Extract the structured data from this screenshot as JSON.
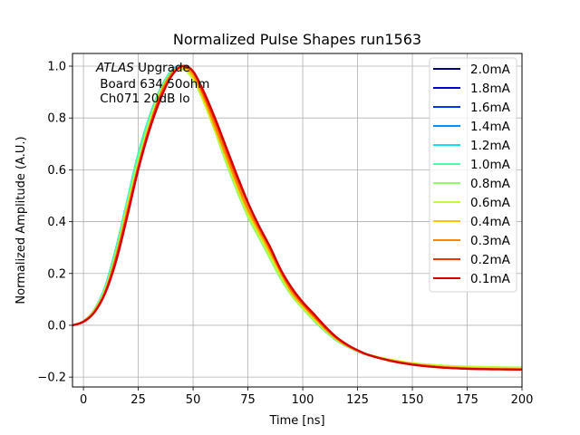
{
  "chart_data": {
    "type": "line",
    "title": "Normalized Pulse Shapes run1563",
    "xlabel": "Time [ns]",
    "ylabel": "Normalized Amplitude (A.U.)",
    "xlim": [
      -5,
      200
    ],
    "ylim": [
      -0.238,
      1.049
    ],
    "xticks": [
      0,
      25,
      50,
      75,
      100,
      125,
      150,
      175,
      200
    ],
    "xtick_labels": [
      "0",
      "25",
      "50",
      "75",
      "100",
      "125",
      "150",
      "175",
      "200"
    ],
    "yticks": [
      -0.2,
      0.0,
      0.2,
      0.4,
      0.6,
      0.8,
      1.0
    ],
    "ytick_labels": [
      "−0.2",
      "0.0",
      "0.2",
      "0.4",
      "0.6",
      "0.8",
      "1.0"
    ],
    "grid": true,
    "legend_position": "top-right",
    "annotation": {
      "italic": "ATLAS",
      "line1_rest": " Upgrade",
      "line2": " Board 634 50ohm",
      "line3": " Ch071 20dB lo"
    },
    "x": [
      -5,
      0,
      5,
      10,
      15,
      20,
      25,
      30,
      35,
      40,
      45,
      50,
      55,
      60,
      65,
      70,
      75,
      80,
      85,
      90,
      95,
      100,
      105,
      110,
      115,
      120,
      125,
      130,
      140,
      150,
      160,
      170,
      180,
      190,
      200
    ],
    "series": [
      {
        "name": "2.0mA",
        "color": "#00007f",
        "values": [
          0.0,
          0.015,
          0.06,
          0.15,
          0.3,
          0.48,
          0.66,
          0.8,
          0.91,
          0.98,
          1.0,
          0.96,
          0.87,
          0.76,
          0.64,
          0.53,
          0.43,
          0.35,
          0.27,
          0.19,
          0.12,
          0.07,
          0.02,
          -0.02,
          -0.055,
          -0.08,
          -0.1,
          -0.115,
          -0.135,
          -0.15,
          -0.158,
          -0.163,
          -0.165,
          -0.166,
          -0.167
        ]
      },
      {
        "name": "1.8mA",
        "color": "#0000d0",
        "values": [
          0.0,
          0.015,
          0.06,
          0.15,
          0.3,
          0.48,
          0.66,
          0.8,
          0.91,
          0.98,
          1.0,
          0.96,
          0.87,
          0.76,
          0.64,
          0.53,
          0.43,
          0.35,
          0.27,
          0.19,
          0.12,
          0.07,
          0.02,
          -0.02,
          -0.055,
          -0.08,
          -0.1,
          -0.115,
          -0.135,
          -0.15,
          -0.158,
          -0.163,
          -0.165,
          -0.166,
          -0.167
        ]
      },
      {
        "name": "1.6mA",
        "color": "#0030ff",
        "values": [
          0.0,
          0.015,
          0.06,
          0.15,
          0.3,
          0.48,
          0.66,
          0.8,
          0.91,
          0.98,
          1.0,
          0.96,
          0.87,
          0.76,
          0.64,
          0.53,
          0.43,
          0.35,
          0.27,
          0.19,
          0.12,
          0.07,
          0.02,
          -0.02,
          -0.055,
          -0.08,
          -0.1,
          -0.115,
          -0.135,
          -0.15,
          -0.158,
          -0.163,
          -0.165,
          -0.166,
          -0.167
        ]
      },
      {
        "name": "1.4mA",
        "color": "#0090ff",
        "values": [
          0.0,
          0.015,
          0.06,
          0.15,
          0.3,
          0.48,
          0.66,
          0.8,
          0.91,
          0.98,
          1.0,
          0.96,
          0.87,
          0.76,
          0.64,
          0.53,
          0.43,
          0.35,
          0.27,
          0.19,
          0.12,
          0.07,
          0.02,
          -0.02,
          -0.055,
          -0.08,
          -0.1,
          -0.115,
          -0.135,
          -0.15,
          -0.158,
          -0.163,
          -0.165,
          -0.166,
          -0.167
        ]
      },
      {
        "name": "1.2mA",
        "color": "#0fdff0",
        "values": [
          0.0,
          0.015,
          0.06,
          0.15,
          0.3,
          0.48,
          0.66,
          0.8,
          0.91,
          0.98,
          1.0,
          0.96,
          0.87,
          0.76,
          0.64,
          0.53,
          0.43,
          0.35,
          0.27,
          0.19,
          0.12,
          0.07,
          0.02,
          -0.02,
          -0.055,
          -0.08,
          -0.1,
          -0.115,
          -0.135,
          -0.15,
          -0.158,
          -0.163,
          -0.165,
          -0.166,
          -0.167
        ]
      },
      {
        "name": "1.0mA",
        "color": "#49ffad",
        "values": [
          0.0,
          0.015,
          0.06,
          0.15,
          0.3,
          0.48,
          0.66,
          0.8,
          0.91,
          0.98,
          0.99,
          0.95,
          0.86,
          0.75,
          0.63,
          0.52,
          0.42,
          0.34,
          0.26,
          0.18,
          0.115,
          0.065,
          0.02,
          -0.02,
          -0.055,
          -0.08,
          -0.1,
          -0.115,
          -0.133,
          -0.147,
          -0.155,
          -0.16,
          -0.162,
          -0.163,
          -0.164
        ]
      },
      {
        "name": "0.8mA",
        "color": "#90ff66",
        "values": [
          0.0,
          0.015,
          0.06,
          0.14,
          0.28,
          0.46,
          0.63,
          0.78,
          0.9,
          0.97,
          0.99,
          0.95,
          0.86,
          0.75,
          0.63,
          0.52,
          0.42,
          0.34,
          0.26,
          0.18,
          0.115,
          0.065,
          0.02,
          -0.02,
          -0.055,
          -0.08,
          -0.1,
          -0.115,
          -0.133,
          -0.146,
          -0.153,
          -0.158,
          -0.16,
          -0.162,
          -0.163
        ]
      },
      {
        "name": "0.6mA",
        "color": "#c1ff34",
        "values": [
          0.0,
          0.015,
          0.055,
          0.14,
          0.28,
          0.46,
          0.63,
          0.78,
          0.9,
          0.97,
          0.99,
          0.95,
          0.86,
          0.75,
          0.64,
          0.53,
          0.43,
          0.35,
          0.27,
          0.19,
          0.12,
          0.07,
          0.025,
          -0.015,
          -0.05,
          -0.078,
          -0.098,
          -0.113,
          -0.132,
          -0.146,
          -0.154,
          -0.159,
          -0.161,
          -0.163,
          -0.164
        ]
      },
      {
        "name": "0.4mA",
        "color": "#ffc400",
        "values": [
          0.0,
          0.015,
          0.055,
          0.135,
          0.27,
          0.45,
          0.62,
          0.77,
          0.89,
          0.97,
          0.995,
          0.96,
          0.87,
          0.76,
          0.65,
          0.54,
          0.44,
          0.36,
          0.28,
          0.2,
          0.125,
          0.075,
          0.03,
          -0.012,
          -0.05,
          -0.078,
          -0.098,
          -0.114,
          -0.134,
          -0.148,
          -0.157,
          -0.162,
          -0.165,
          -0.167,
          -0.168
        ]
      },
      {
        "name": "0.3mA",
        "color": "#ff8600",
        "values": [
          0.0,
          0.015,
          0.055,
          0.13,
          0.27,
          0.44,
          0.61,
          0.76,
          0.89,
          0.97,
          1.0,
          0.97,
          0.88,
          0.77,
          0.66,
          0.55,
          0.45,
          0.37,
          0.29,
          0.205,
          0.13,
          0.08,
          0.035,
          -0.01,
          -0.048,
          -0.077,
          -0.098,
          -0.115,
          -0.136,
          -0.15,
          -0.159,
          -0.165,
          -0.168,
          -0.169,
          -0.17
        ]
      },
      {
        "name": "0.2mA",
        "color": "#ff3000",
        "values": [
          0.0,
          0.015,
          0.05,
          0.13,
          0.26,
          0.43,
          0.61,
          0.76,
          0.88,
          0.96,
          1.0,
          0.98,
          0.89,
          0.79,
          0.68,
          0.57,
          0.47,
          0.38,
          0.3,
          0.21,
          0.14,
          0.085,
          0.04,
          -0.005,
          -0.045,
          -0.075,
          -0.097,
          -0.115,
          -0.137,
          -0.151,
          -0.16,
          -0.166,
          -0.169,
          -0.17,
          -0.171
        ]
      },
      {
        "name": "0.1mA",
        "color": "#d20000",
        "values": [
          0.0,
          0.013,
          0.05,
          0.125,
          0.25,
          0.42,
          0.6,
          0.75,
          0.87,
          0.96,
          1.0,
          0.98,
          0.9,
          0.8,
          0.69,
          0.58,
          0.475,
          0.385,
          0.305,
          0.215,
          0.145,
          0.09,
          0.045,
          -0.002,
          -0.043,
          -0.073,
          -0.096,
          -0.114,
          -0.137,
          -0.152,
          -0.161,
          -0.166,
          -0.169,
          -0.17,
          -0.171
        ]
      }
    ]
  }
}
